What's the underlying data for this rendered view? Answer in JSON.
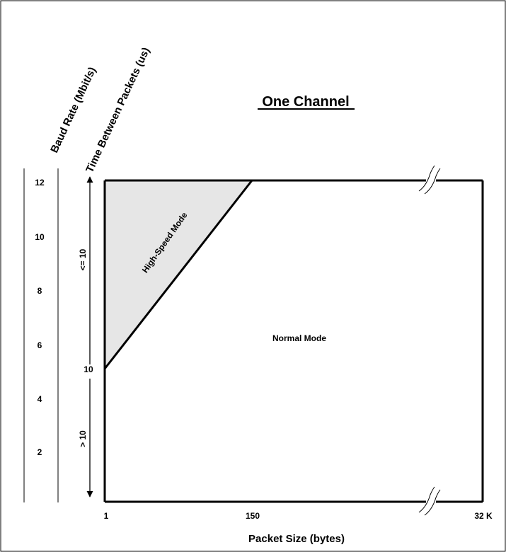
{
  "title": "One Channel",
  "axes": {
    "baud_label": "Baud Rate (Mbit/s)",
    "time_label": "Time Between Packets (us)",
    "x_label": "Packet Size (bytes)"
  },
  "baud_ticks": [
    "12",
    "10",
    "8",
    "6",
    "4",
    "2"
  ],
  "x_ticks": [
    "1",
    "150",
    "32 K"
  ],
  "time_mark": "10",
  "time_upper": "<= 10",
  "time_lower": "> 10",
  "regions": {
    "high_speed": "High-Speed Mode",
    "normal": "Normal Mode"
  },
  "colors": {
    "high_speed_fill": "#e6e6e6",
    "line": "#000000"
  }
}
